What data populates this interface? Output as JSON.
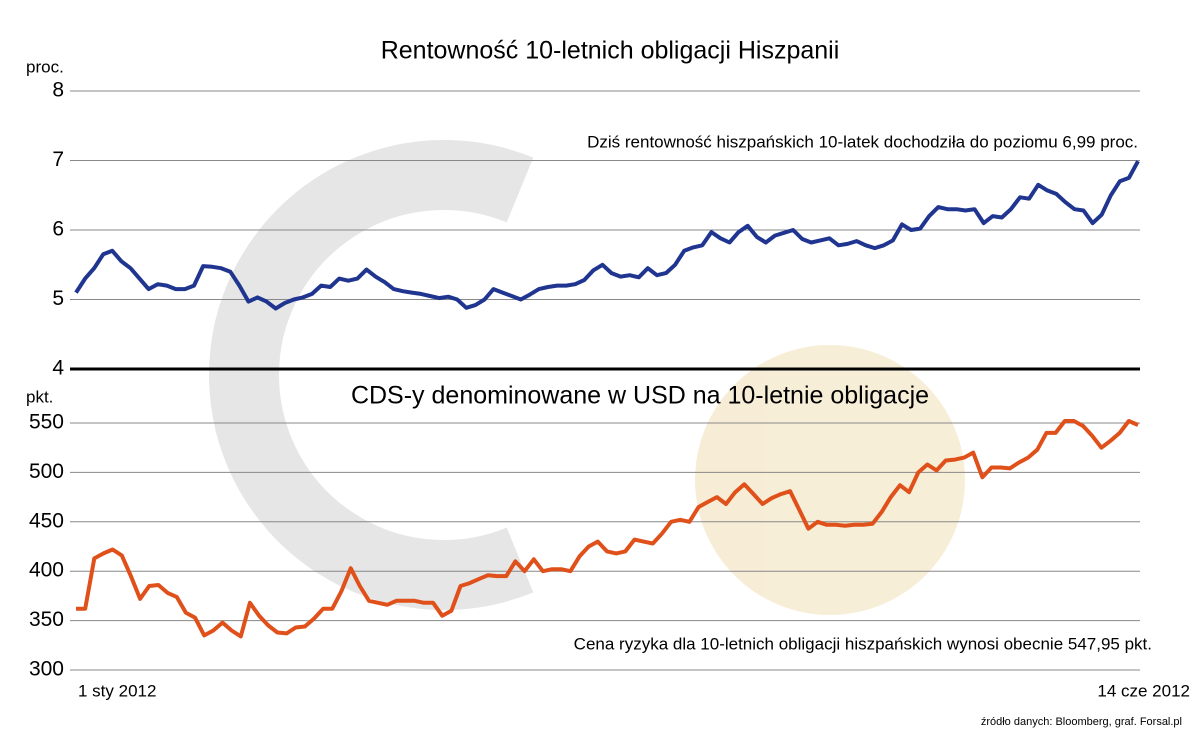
{
  "chart_data": [
    {
      "type": "line",
      "title": "Rentowność 10-letnich obligacji Hiszpanii",
      "y_label": "proc.",
      "annotation": "Dziś rentowność hiszpańskich 10-latek dochodziła do poziomu 6,99 proc.",
      "ylim": [
        4,
        8
      ],
      "yticks": [
        4,
        5,
        6,
        7,
        8
      ],
      "grid": true,
      "series": [
        {
          "name": null,
          "color": "#1f3590",
          "values": [
            5.1,
            5.3,
            5.45,
            5.65,
            5.7,
            5.55,
            5.45,
            5.3,
            5.15,
            5.22,
            5.2,
            5.15,
            5.15,
            5.2,
            5.48,
            5.47,
            5.45,
            5.4,
            5.2,
            4.97,
            5.03,
            4.97,
            4.87,
            4.95,
            5.0,
            5.03,
            5.08,
            5.2,
            5.18,
            5.3,
            5.27,
            5.3,
            5.43,
            5.33,
            5.25,
            5.15,
            5.12,
            5.1,
            5.08,
            5.05,
            5.02,
            5.04,
            5.0,
            4.88,
            4.92,
            5.0,
            5.15,
            5.1,
            5.05,
            5.0,
            5.07,
            5.15,
            5.18,
            5.2,
            5.2,
            5.22,
            5.28,
            5.42,
            5.5,
            5.38,
            5.33,
            5.35,
            5.32,
            5.45,
            5.35,
            5.38,
            5.5,
            5.7,
            5.75,
            5.78,
            5.97,
            5.88,
            5.82,
            5.97,
            6.06,
            5.9,
            5.82,
            5.92,
            5.96,
            6.0,
            5.87,
            5.82,
            5.85,
            5.88,
            5.78,
            5.8,
            5.84,
            5.78,
            5.74,
            5.78,
            5.85,
            6.08,
            6.0,
            6.02,
            6.2,
            6.33,
            6.3,
            6.3,
            6.28,
            6.3,
            6.1,
            6.2,
            6.18,
            6.3,
            6.47,
            6.45,
            6.65,
            6.57,
            6.52,
            6.4,
            6.3,
            6.28,
            6.1,
            6.22,
            6.5,
            6.7,
            6.75,
            6.99
          ]
        }
      ]
    },
    {
      "type": "line",
      "title": "CDS-y denominowane w USD na 10-letnie obligacje",
      "y_label": "pkt.",
      "annotation": "Cena ryzyka dla 10-letnich obligacji hiszpańskich wynosi obecnie 547,95 pkt.",
      "source": "źródło danych: Bloomberg, graf. Forsal.pl",
      "ylim": [
        300,
        550
      ],
      "yticks": [
        300,
        350,
        400,
        450,
        500,
        550
      ],
      "grid": true,
      "categories": [
        "1 sty 2012",
        null,
        null,
        null,
        null,
        null,
        null,
        null,
        null,
        null,
        null,
        null,
        null,
        null,
        null,
        null,
        null,
        null,
        null,
        null,
        null,
        null,
        null,
        null,
        null,
        null,
        null,
        null,
        null,
        null,
        null,
        null,
        null,
        null,
        null,
        null,
        null,
        null,
        null,
        null,
        null,
        null,
        null,
        null,
        null,
        null,
        null,
        null,
        null,
        null,
        null,
        null,
        null,
        null,
        null,
        null,
        null,
        null,
        null,
        null,
        null,
        null,
        null,
        null,
        null,
        null,
        null,
        null,
        null,
        null,
        null,
        null,
        null,
        null,
        null,
        null,
        null,
        null,
        null,
        null,
        null,
        null,
        null,
        null,
        null,
        null,
        null,
        null,
        null,
        null,
        null,
        null,
        null,
        null,
        null,
        null,
        null,
        null,
        null,
        null,
        null,
        null,
        null,
        null,
        null,
        null,
        null,
        null,
        null,
        null,
        null,
        null,
        null,
        null,
        null,
        null,
        "14 cze 2012"
      ],
      "series": [
        {
          "name": null,
          "color": "#e0501a",
          "values": [
            362,
            362,
            413,
            418,
            422,
            416,
            395,
            372,
            385,
            386,
            378,
            374,
            358,
            353,
            335,
            340,
            348,
            340,
            334,
            368,
            355,
            345,
            338,
            337,
            343,
            344,
            352,
            362,
            362,
            380,
            403,
            385,
            370,
            368,
            366,
            370,
            370,
            370,
            368,
            368,
            355,
            360,
            385,
            388,
            392,
            396,
            395,
            395,
            410,
            400,
            412,
            400,
            402,
            402,
            400,
            415,
            425,
            430,
            420,
            418,
            420,
            432,
            430,
            428,
            438,
            450,
            452,
            450,
            465,
            470,
            475,
            468,
            480,
            488,
            478,
            468,
            474,
            478,
            481,
            462,
            443,
            450,
            447,
            447,
            446,
            447,
            447,
            448,
            460,
            475,
            487,
            480,
            500,
            508,
            502,
            512,
            513,
            515,
            520,
            495,
            505,
            505,
            504,
            510,
            515,
            523,
            540,
            540,
            552,
            552,
            547,
            537,
            525,
            532,
            540,
            552,
            547.95
          ]
        }
      ]
    }
  ]
}
